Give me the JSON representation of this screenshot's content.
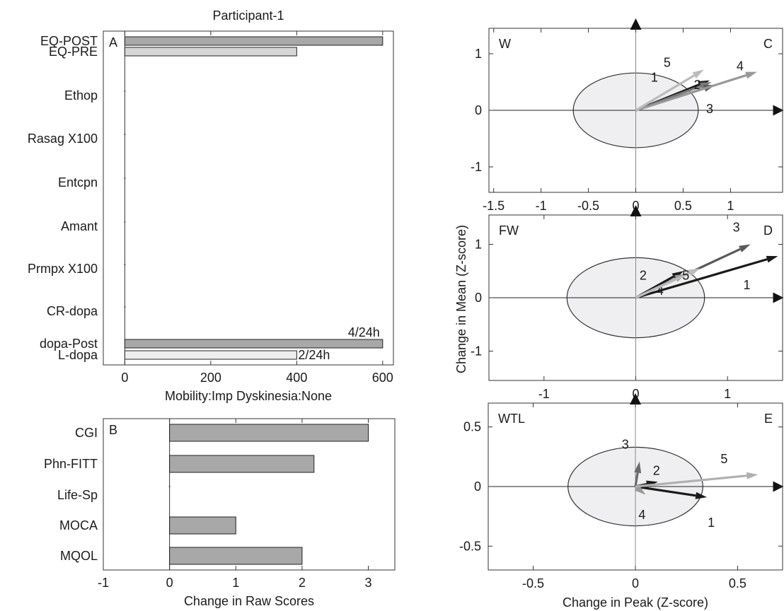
{
  "chart_data": [
    {
      "panel": "A",
      "type": "bar",
      "orientation": "horizontal",
      "title": "Participant-1",
      "xlabel": "Mobility:Imp Dyskinesia:None",
      "xlim": [
        -50,
        625
      ],
      "xticks": [
        "0",
        "200",
        "400",
        "600"
      ],
      "categories": [
        "EQ-POST",
        "EQ-PRE",
        "Ethop",
        "Rasag X100",
        "Entcpn",
        "Amant",
        "Prmpx X100",
        "CR-dopa",
        "dopa-Post",
        "L-dopa"
      ],
      "values": [
        600,
        400,
        0,
        0,
        0,
        0,
        0,
        0,
        600,
        400
      ],
      "colors": [
        "#a8a8a8",
        "#d6d6d6",
        "#a8a8a8",
        "#a8a8a8",
        "#a8a8a8",
        "#a8a8a8",
        "#a8a8a8",
        "#a8a8a8",
        "#a8a8a8",
        "#eeeeee"
      ],
      "annotations": [
        {
          "category": "dopa-Post",
          "text": "4/24h"
        },
        {
          "category": "L-dopa",
          "text": "2/24h"
        }
      ]
    },
    {
      "panel": "B",
      "type": "bar",
      "orientation": "horizontal",
      "xlabel": "Change in Raw Scores",
      "xlim": [
        -1,
        3.4
      ],
      "xticks": [
        "-1",
        "0",
        "1",
        "2",
        "3"
      ],
      "categories": [
        "CGI",
        "Phn-FITT",
        "Life-Sp",
        "MOCA",
        "MQOL"
      ],
      "values": [
        3,
        2.18,
        0,
        1,
        2
      ]
    },
    {
      "panel": "C",
      "type": "vector",
      "label": "W",
      "xlim": [
        -1.55,
        1.55
      ],
      "ylim": [
        -1.45,
        1.45
      ],
      "xticks": [
        "-1.5",
        "-1",
        "-0.5",
        "0",
        "0.5",
        "1"
      ],
      "yticks": [
        "1",
        "0",
        "-1"
      ],
      "circle_radius": 0.66,
      "vectors": [
        {
          "label": "1",
          "x": 0.78,
          "y": 0.53,
          "color": "#1a1a1a"
        },
        {
          "label": "2",
          "x": 0.8,
          "y": 0.5,
          "color": "#7a7a7a"
        },
        {
          "label": "3",
          "x": 0.84,
          "y": 0.45,
          "color": "#5a5a5a"
        },
        {
          "label": "4",
          "x": 1.28,
          "y": 0.68,
          "color": "#999999"
        },
        {
          "label": "5",
          "x": 0.72,
          "y": 0.72,
          "color": "#bbbbbb"
        }
      ]
    },
    {
      "panel": "D",
      "type": "vector",
      "label": "FW",
      "xlim": [
        -1.6,
        1.6
      ],
      "ylim": [
        -1.55,
        1.55
      ],
      "xticks": [
        "-1",
        "0",
        "1"
      ],
      "yticks": [
        "1",
        "0",
        "-1"
      ],
      "circle_radius": 0.75,
      "vectors": [
        {
          "label": "1",
          "x": 1.55,
          "y": 0.78,
          "color": "#1a1a1a"
        },
        {
          "label": "2",
          "x": 0.52,
          "y": 0.5,
          "color": "#1a1a1a"
        },
        {
          "label": "3",
          "x": 1.25,
          "y": 1.0,
          "color": "#5a5a5a"
        },
        {
          "label": "4",
          "x": 0.55,
          "y": 0.45,
          "color": "#9a9a9a"
        },
        {
          "label": "5",
          "x": 0.7,
          "y": 0.55,
          "color": "#bbbbbb"
        }
      ]
    },
    {
      "panel": "E",
      "type": "vector",
      "label": "WTL",
      "xlim": [
        -0.72,
        0.72
      ],
      "ylim": [
        -0.7,
        0.7
      ],
      "xticks": [
        "-0.5",
        "0",
        "0.5"
      ],
      "yticks": [
        "0.5",
        "0",
        "-0.5"
      ],
      "xlabel": "Change in Peak (Z-score)",
      "circle_radius": 0.33,
      "vectors": [
        {
          "label": "1",
          "x": 0.35,
          "y": -0.09,
          "color": "#1a1a1a"
        },
        {
          "label": "2",
          "x": 0.11,
          "y": 0.04,
          "color": "#1a1a1a"
        },
        {
          "label": "3",
          "x": 0.02,
          "y": 0.21,
          "color": "#6a6a6a"
        },
        {
          "label": "4",
          "x": 0.05,
          "y": -0.07,
          "color": "#9a9a9a"
        },
        {
          "label": "5",
          "x": 0.6,
          "y": 0.1,
          "color": "#b0b0b0"
        }
      ]
    }
  ],
  "shared_ylabel": "Change in Mean (Z-score)"
}
